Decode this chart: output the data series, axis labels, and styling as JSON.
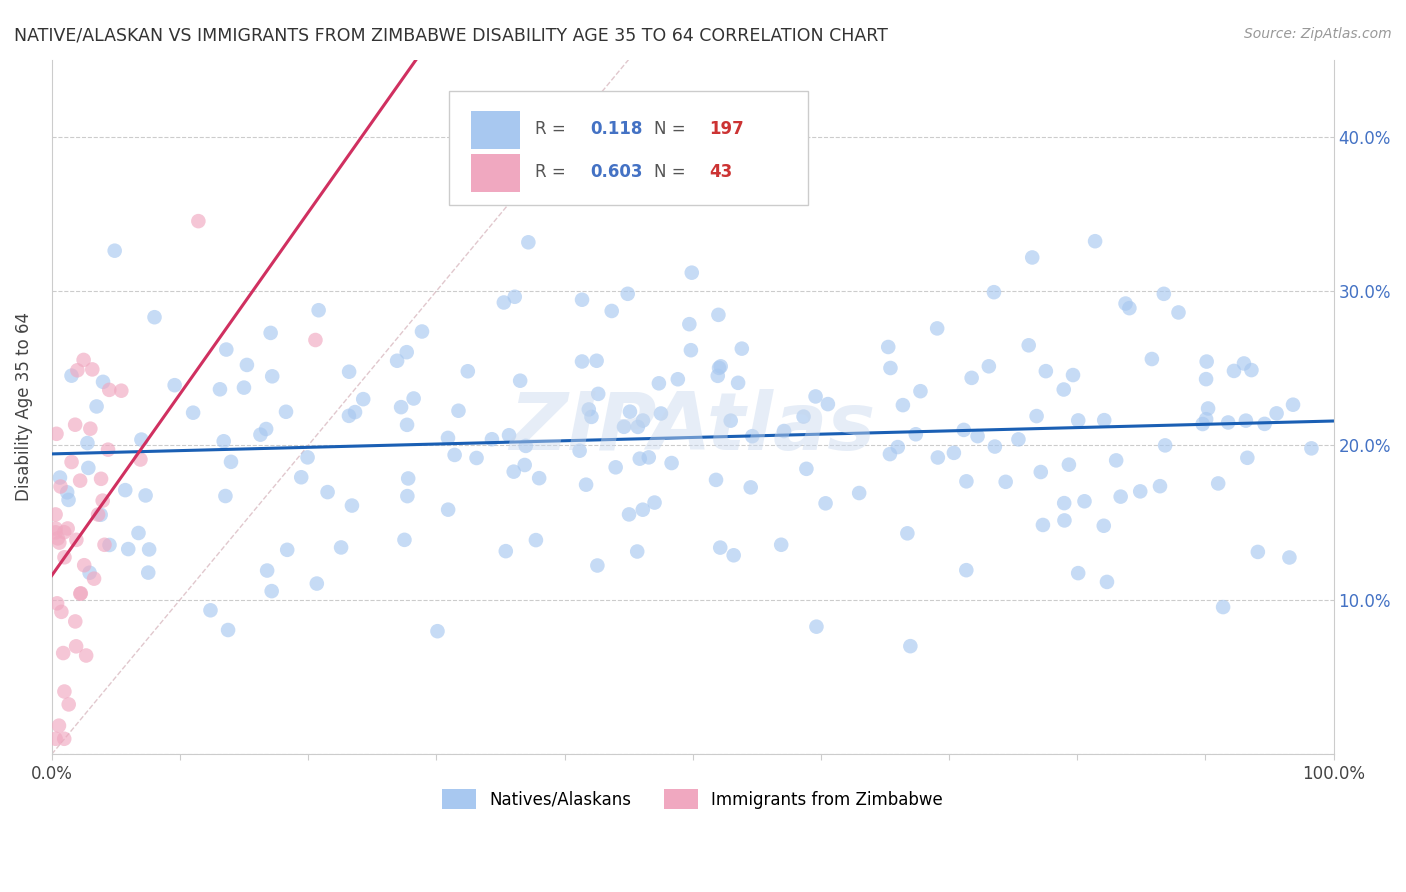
{
  "title": "NATIVE/ALASKAN VS IMMIGRANTS FROM ZIMBABWE DISABILITY AGE 35 TO 64 CORRELATION CHART",
  "source": "Source: ZipAtlas.com",
  "ylabel": "Disability Age 35 to 64",
  "xlim": [
    0,
    1.0
  ],
  "ylim": [
    0,
    0.45
  ],
  "native_R": 0.118,
  "native_N": 197,
  "zimbabwe_R": 0.603,
  "zimbabwe_N": 43,
  "native_color": "#a8c8f0",
  "zimbabwe_color": "#f0a8c0",
  "native_line_color": "#1a5fb4",
  "zimbabwe_line_color": "#d03060",
  "watermark": "ZIPAtlas",
  "legend_native_val_color": "#4472c4",
  "legend_N_color": "#cc3333",
  "diag_color": "#d0a0b0"
}
